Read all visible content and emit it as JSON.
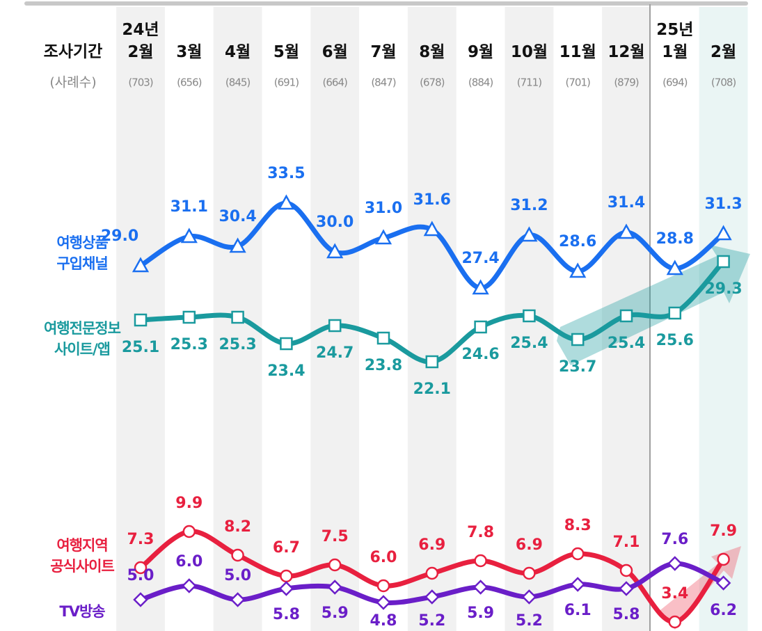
{
  "chart_data": {
    "type": "line",
    "header_label": "조사기간",
    "sample_label": "(사례수)",
    "categories": [
      "24년 2월",
      "3월",
      "4월",
      "5월",
      "6월",
      "7월",
      "8월",
      "9월",
      "10월",
      "11월",
      "12월",
      "25년 1월",
      "2월"
    ],
    "sample_sizes": [
      "(703)",
      "(656)",
      "(845)",
      "(691)",
      "(664)",
      "(847)",
      "(678)",
      "(884)",
      "(711)",
      "(701)",
      "(879)",
      "(694)",
      "(708)"
    ],
    "ylim": [
      3,
      48
    ],
    "series": [
      {
        "name": "여행상품 구입채널",
        "color": "#1a6ff0",
        "marker": "triangle",
        "values": [
          29.0,
          31.1,
          30.4,
          33.5,
          30.0,
          31.0,
          31.6,
          27.4,
          31.2,
          28.6,
          31.4,
          28.8,
          31.3
        ],
        "value_labels": [
          "29.0",
          "31.1",
          "30.4",
          "33.5",
          "30.0",
          "31.0",
          "31.6",
          "27.4",
          "31.2",
          "28.6",
          "31.4",
          "28.8",
          "31.3"
        ]
      },
      {
        "name": "여행전문정보 사이트/앱",
        "color": "#1a9a9e",
        "marker": "square",
        "values": [
          25.1,
          25.3,
          25.3,
          23.4,
          24.7,
          23.8,
          22.1,
          24.6,
          25.4,
          23.7,
          25.4,
          25.6,
          29.3
        ],
        "value_labels": [
          "25.1",
          "25.3",
          "25.3",
          "23.4",
          "24.7",
          "23.8",
          "22.1",
          "24.6",
          "25.4",
          "23.7",
          "25.4",
          "25.6",
          "29.3"
        ]
      },
      {
        "name": "여행지역 공식사이트",
        "color": "#e8203f",
        "marker": "circle",
        "values": [
          7.3,
          9.9,
          8.2,
          6.7,
          7.5,
          6.0,
          6.9,
          7.8,
          6.9,
          8.3,
          7.1,
          3.4,
          7.9
        ],
        "value_labels": [
          "7.3",
          "9.9",
          "8.2",
          "6.7",
          "7.5",
          "6.0",
          "6.9",
          "7.8",
          "6.9",
          "8.3",
          "7.1",
          "3.4",
          "7.9"
        ]
      },
      {
        "name": "TV방송",
        "color": "#6a1ec8",
        "marker": "diamond",
        "values": [
          5.0,
          6.0,
          5.0,
          5.8,
          5.9,
          4.8,
          5.2,
          5.9,
          5.2,
          6.1,
          5.8,
          7.6,
          6.2
        ],
        "value_labels": [
          "5.0",
          "6.0",
          "5.0",
          "5.8",
          "5.9",
          "4.8",
          "5.2",
          "5.9",
          "5.2",
          "6.1",
          "5.8",
          "7.6",
          "6.2"
        ]
      }
    ]
  }
}
